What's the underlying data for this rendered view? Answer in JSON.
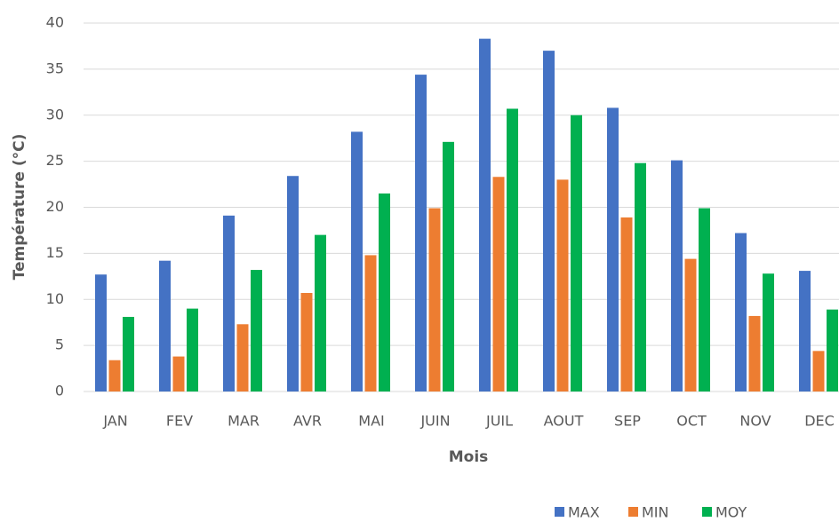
{
  "chart_data": {
    "type": "bar",
    "x_label": "Mois",
    "y_label": "Température (°C)",
    "categories": [
      "JAN",
      "FEV",
      "MAR",
      "AVR",
      "MAI",
      "JUIN",
      "JUIL",
      "AOUT",
      "SEP",
      "OCT",
      "NOV",
      "DEC"
    ],
    "series": [
      {
        "name": "MAX",
        "color": "#4472c4",
        "values": [
          12.7,
          14.2,
          19.1,
          23.4,
          28.2,
          34.4,
          38.3,
          37.0,
          30.8,
          25.1,
          17.2,
          13.1
        ]
      },
      {
        "name": "MIN",
        "color": "#ed7d31",
        "values": [
          3.4,
          3.8,
          7.3,
          10.7,
          14.8,
          19.9,
          23.3,
          23.0,
          18.9,
          14.4,
          8.2,
          4.4
        ]
      },
      {
        "name": "MOY",
        "color": "#00b050",
        "values": [
          8.1,
          9.0,
          13.2,
          17.0,
          21.5,
          27.1,
          30.7,
          30.0,
          24.8,
          19.9,
          12.8,
          8.9
        ]
      }
    ],
    "ylim": [
      0,
      40
    ],
    "yticks": [
      0,
      5,
      10,
      15,
      20,
      25,
      30,
      35,
      40
    ],
    "grid": true,
    "legend": "bottom-right"
  }
}
